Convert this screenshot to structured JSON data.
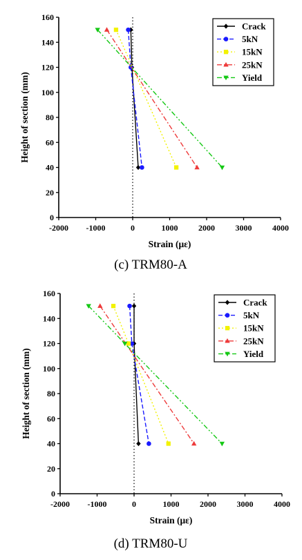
{
  "colors": {
    "Crack": "#000000",
    "5kN": "#1a1aff",
    "15kN": "#f2f200",
    "25kN": "#ee3a3a",
    "Yield": "#14c814"
  },
  "chart_data": [
    {
      "type": "line",
      "caption": "(c) TRM80-A",
      "xlabel": "Strain (με)",
      "ylabel": "Height of section (mm)",
      "xlim": [
        -2000,
        4000
      ],
      "ylim": [
        0,
        160
      ],
      "xticks": [
        "-2000",
        "-1000",
        "0",
        "1000",
        "2000",
        "3000",
        "4000"
      ],
      "yticks": [
        "0",
        "20",
        "40",
        "60",
        "80",
        "100",
        "120",
        "140",
        "160"
      ],
      "legend_position": "top-right",
      "series": [
        {
          "name": "Crack",
          "marker": "diamond",
          "dash": "",
          "points": [
            [
              -50,
              150
            ],
            [
              -20,
              120
            ],
            [
              150,
              40
            ]
          ]
        },
        {
          "name": "5kN",
          "marker": "circle",
          "dash": "6 3",
          "points": [
            [
              -120,
              150
            ],
            [
              -50,
              120
            ],
            [
              250,
              40
            ]
          ]
        },
        {
          "name": "15kN",
          "marker": "square",
          "dash": "2 3",
          "points": [
            [
              -450,
              150
            ],
            [
              1180,
              40
            ]
          ]
        },
        {
          "name": "25kN",
          "marker": "triangle-up",
          "dash": "7 3 2 3",
          "points": [
            [
              -700,
              150
            ],
            [
              1740,
              40
            ]
          ]
        },
        {
          "name": "Yield",
          "marker": "triangle-down",
          "dash": "7 3 2 3 2 3",
          "points": [
            [
              -950,
              150
            ],
            [
              2420,
              40
            ]
          ]
        }
      ]
    },
    {
      "type": "line",
      "caption": "(d) TRM80-U",
      "xlabel": "Strain (με)",
      "ylabel": "Height of section (mm)",
      "xlim": [
        -2000,
        4000
      ],
      "ylim": [
        0,
        160
      ],
      "xticks": [
        "-2000",
        "-1000",
        "0",
        "1000",
        "2000",
        "3000",
        "4000"
      ],
      "yticks": [
        "0",
        "20",
        "40",
        "60",
        "80",
        "100",
        "120",
        "140",
        "160"
      ],
      "legend_position": "top-right",
      "series": [
        {
          "name": "Crack",
          "marker": "diamond",
          "dash": "",
          "points": [
            [
              0,
              150
            ],
            [
              0,
              120
            ],
            [
              120,
              40
            ]
          ]
        },
        {
          "name": "5kN",
          "marker": "circle",
          "dash": "6 3",
          "points": [
            [
              -120,
              150
            ],
            [
              -60,
              120
            ],
            [
              400,
              40
            ]
          ]
        },
        {
          "name": "15kN",
          "marker": "square",
          "dash": "2 3",
          "points": [
            [
              -560,
              150
            ],
            [
              -150,
              120
            ],
            [
              930,
              40
            ]
          ]
        },
        {
          "name": "25kN",
          "marker": "triangle-up",
          "dash": "7 3 2 3",
          "points": [
            [
              -920,
              150
            ],
            [
              1620,
              40
            ]
          ]
        },
        {
          "name": "Yield",
          "marker": "triangle-down",
          "dash": "7 3 2 3 2 3",
          "points": [
            [
              -1230,
              150
            ],
            [
              -250,
              120
            ],
            [
              2380,
              40
            ]
          ]
        }
      ]
    }
  ]
}
